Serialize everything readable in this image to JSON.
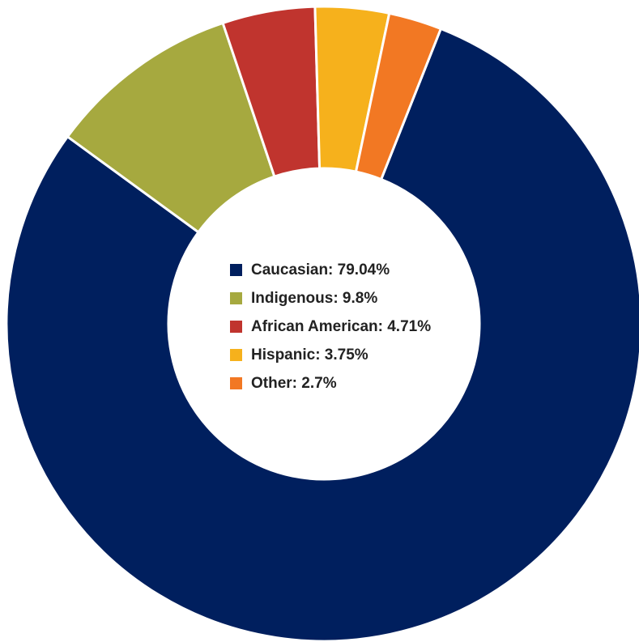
{
  "chart_data": {
    "type": "pie",
    "donut": true,
    "legend_position": "center",
    "categories": [
      "Caucasian",
      "Indigenous",
      "African American",
      "Hispanic",
      "Other"
    ],
    "values": [
      79.04,
      9.8,
      4.71,
      3.75,
      2.7
    ],
    "legend_labels": [
      "Caucasian: 79.04%",
      "Indigenous: 9.8%",
      "African American: 4.71%",
      "Hispanic: 3.75%",
      "Other: 2.7%"
    ],
    "colors": [
      "#001f5e",
      "#a6a93f",
      "#c0342e",
      "#f6b11c",
      "#f27823"
    ]
  }
}
